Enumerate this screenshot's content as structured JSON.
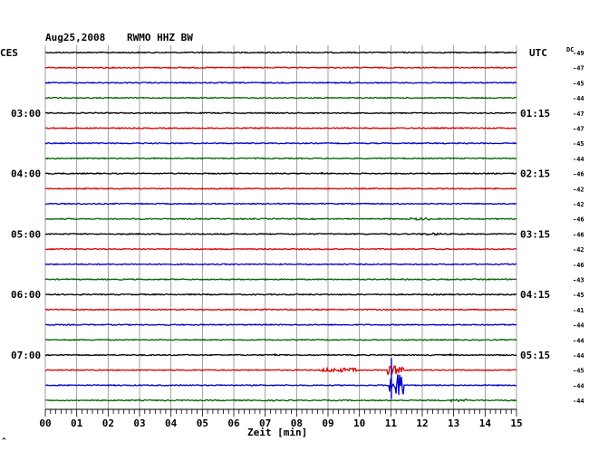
{
  "header": {
    "date": "Aug25,2008",
    "station": "RWMO HHZ BW",
    "left_zone": "CES",
    "right_zone": "UTC",
    "dc_label": "DC"
  },
  "footer": {
    "xlabel": "Zeit [min]",
    "corner_mark": "^"
  },
  "colors": {
    "black": "#000000",
    "red": "#dd0000",
    "blue": "#0000cc",
    "green": "#006600",
    "grid": "#888888"
  },
  "chart_data": {
    "type": "line",
    "title": "Aug25,2008   RWMO HHZ BW",
    "xlabel": "Zeit [min]",
    "ylabel": "",
    "x_ticks": [
      "00",
      "01",
      "02",
      "03",
      "04",
      "05",
      "06",
      "07",
      "08",
      "09",
      "10",
      "11",
      "12",
      "13",
      "14",
      "15"
    ],
    "xlim": [
      0,
      15
    ],
    "grid": true,
    "trace_colors": [
      "black",
      "red",
      "blue",
      "green"
    ],
    "left_hour_labels": [
      {
        "row": 4,
        "label": "03:00"
      },
      {
        "row": 8,
        "label": "04:00"
      },
      {
        "row": 12,
        "label": "05:00"
      },
      {
        "row": 16,
        "label": "06:00"
      },
      {
        "row": 20,
        "label": "07:00"
      }
    ],
    "right_hour_labels": [
      {
        "row": 4,
        "label": "01:15"
      },
      {
        "row": 8,
        "label": "02:15"
      },
      {
        "row": 12,
        "label": "03:15"
      },
      {
        "row": 16,
        "label": "04:15"
      },
      {
        "row": 20,
        "label": "05:15"
      }
    ],
    "dc_offsets": [
      "-49",
      "-47",
      "-45",
      "-44",
      "-47",
      "-47",
      "-45",
      "-44",
      "-46",
      "-42",
      "-42",
      "-46",
      "-46",
      "-42",
      "-46",
      "-43",
      "-45",
      "-41",
      "-44",
      "-44",
      "-44",
      "-45",
      "-44",
      "-44"
    ],
    "events": [
      {
        "row": 11,
        "start_min": 11.6,
        "end_min": 12.3,
        "amp": 0.55
      },
      {
        "row": 12,
        "start_min": 12.0,
        "end_min": 12.7,
        "amp": 0.5
      },
      {
        "row": 21,
        "start_min": 8.8,
        "end_min": 9.9,
        "amp": 0.9
      },
      {
        "row": 21,
        "start_min": 10.9,
        "end_min": 11.4,
        "amp": 2.0
      },
      {
        "row": 22,
        "start_min": 10.95,
        "end_min": 11.4,
        "amp": 5.5
      },
      {
        "row": 23,
        "start_min": 12.9,
        "end_min": 13.4,
        "amp": 0.6
      }
    ],
    "spikes": [
      {
        "row": 2,
        "min": 9.7,
        "amp": 0.7
      },
      {
        "row": 8,
        "min": 8.8,
        "amp": 0.6
      },
      {
        "row": 20,
        "min": 7.3,
        "amp": 0.6
      },
      {
        "row": 20,
        "min": 12.9,
        "amp": 0.6
      },
      {
        "row": 22,
        "min": 11.02,
        "amp": 10.0
      }
    ]
  }
}
